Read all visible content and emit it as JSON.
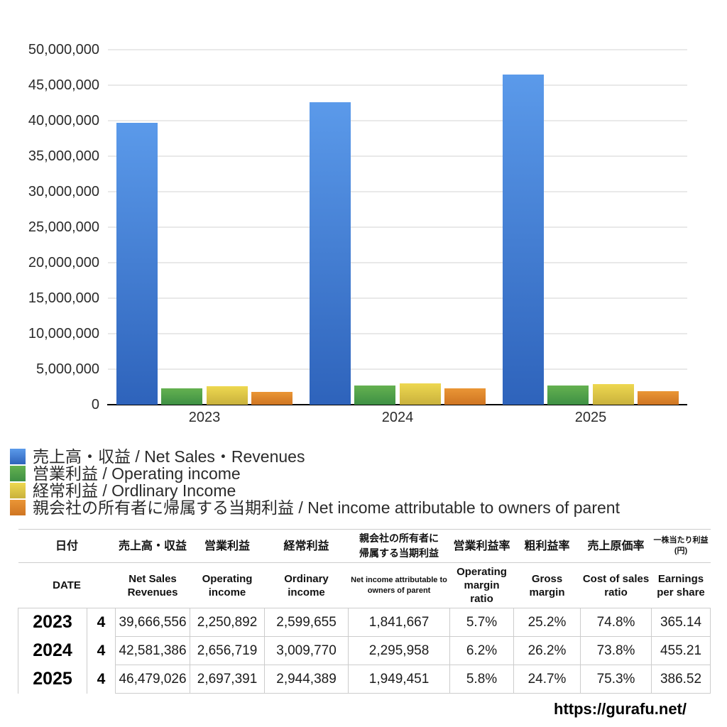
{
  "chart_data": {
    "type": "bar",
    "title": "",
    "categories": [
      "2023",
      "2024",
      "2025"
    ],
    "series": [
      {
        "name": "売上高・収益 / Net Sales・Revenues",
        "values": [
          39666556,
          42581386,
          46479026
        ],
        "color_top": "#5b9aea",
        "color_bottom": "#2e63bb"
      },
      {
        "name": "営業利益 / Operating income",
        "values": [
          2250892,
          2656719,
          2697391
        ],
        "color_top": "#64b150",
        "color_bottom": "#3e9044"
      },
      {
        "name": "経常利益 / Ordlinary Income",
        "values": [
          2599655,
          3009770,
          2944389
        ],
        "color_top": "#eed850",
        "color_bottom": "#c9b13c"
      },
      {
        "name": "親会社の所有者に帰属する当期利益 / Net income attributable to owners of parent",
        "values": [
          1841667,
          2295958,
          1949451
        ],
        "color_top": "#ea9636",
        "color_bottom": "#cf7522"
      }
    ],
    "ylim": [
      0,
      50000000
    ],
    "ytick_step": 5000000,
    "grid": true,
    "legend_position": "bottom-left",
    "xlabel": "",
    "ylabel": ""
  },
  "table": {
    "columns_jp": [
      "日付",
      "売上高・収益",
      "営業利益",
      "経常利益",
      "親会社の所有者に帰属する当期利益",
      "営業利益率",
      "粗利益率",
      "売上原価率",
      "一株当たり利益(円)"
    ],
    "columns_en": [
      "DATE",
      "Net Sales Revenues",
      "Operating income",
      "Ordinary income",
      "Net income attributable to owners of parent",
      "Operating margin ratio",
      "Gross margin",
      "Cost of sales ratio",
      "Earnings per share"
    ],
    "rows": [
      {
        "year": "2023",
        "month": "4",
        "values": [
          "39,666,556",
          "2,250,892",
          "2,599,655",
          "1,841,667",
          "5.7%",
          "25.2%",
          "74.8%",
          "365.14"
        ]
      },
      {
        "year": "2024",
        "month": "4",
        "values": [
          "42,581,386",
          "2,656,719",
          "3,009,770",
          "2,295,958",
          "6.2%",
          "26.2%",
          "73.8%",
          "455.21"
        ]
      },
      {
        "year": "2025",
        "month": "4",
        "values": [
          "46,479,026",
          "2,697,391",
          "2,944,389",
          "1,949,451",
          "5.8%",
          "24.7%",
          "75.3%",
          "386.52"
        ]
      }
    ]
  },
  "footer": {
    "url": "https://gurafu.net/"
  }
}
